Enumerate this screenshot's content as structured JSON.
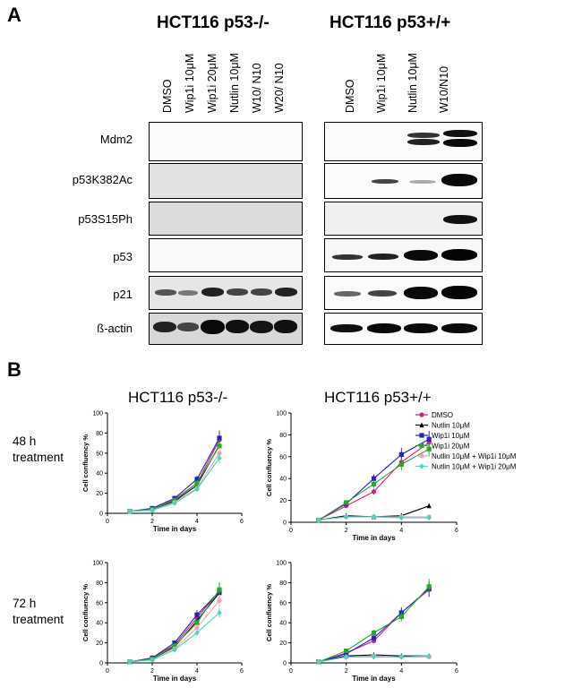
{
  "panel_a": {
    "letter": "A",
    "title_left": "HCT116 p53-/-",
    "title_right": "HCT116 p53+/+",
    "lanes_left": [
      "DMSO",
      "Wip1i 10μM",
      "Wip1i 20μM",
      "Nutlin 10μM",
      "W10/ N10",
      "W20/ N10"
    ],
    "lanes_right": [
      "DMSO",
      "Wip1i 10μM",
      "Nutlin 10μM",
      "W10/N10"
    ],
    "rows": [
      "Mdm2",
      "p53K382Ac",
      "p53S15Ph",
      "p53",
      "p21",
      "ß-actin"
    ]
  },
  "panel_b": {
    "letter": "B",
    "col_title_left": "HCT116 p53-/-",
    "col_title_right": "HCT116 p53+/+",
    "row_label_top_1": "48 h",
    "row_label_top_2": "treatment",
    "row_label_bottom_1": "72 h",
    "row_label_bottom_2": "treatment",
    "ylabel": "Cell confluency %",
    "xlabel": "Time in days",
    "legend": [
      "DMSO",
      "Nutlin 10μM",
      "Wip1i 10μM",
      "Wip1i 20μM",
      "Nutlin 10μM + Wip1i 10μM",
      "Nutlin 10μM + Wip1i 20μM"
    ],
    "series_colors": [
      "#e0197d",
      "#000000",
      "#2222cc",
      "#22aa22",
      "#f0a0b8",
      "#40d8c0"
    ]
  },
  "chart_data": [
    {
      "type": "line",
      "ylabel": "Cell confluency %",
      "xlabel": "Time in days",
      "xlim": [
        0,
        6
      ],
      "ylim": [
        0,
        100
      ],
      "xticks": [
        0,
        2,
        4,
        6
      ],
      "yticks": [
        0,
        20,
        40,
        60,
        80,
        100
      ],
      "x": [
        1,
        2,
        3,
        4,
        5
      ],
      "series": [
        {
          "name": "DMSO",
          "values": [
            2,
            4,
            14,
            30,
            73
          ]
        },
        {
          "name": "Nutlin 10μM",
          "values": [
            2,
            4,
            12,
            28,
            68
          ]
        },
        {
          "name": "Wip1i 10μM",
          "values": [
            2,
            5,
            15,
            34,
            75
          ]
        },
        {
          "name": "Wip1i 20μM",
          "values": [
            2,
            4,
            13,
            30,
            67
          ]
        },
        {
          "name": "Nutlin 10μM + Wip1i 10μM",
          "values": [
            2,
            3,
            11,
            25,
            60
          ]
        },
        {
          "name": "Nutlin 10μM + Wip1i 20μM",
          "values": [
            2,
            3,
            10,
            24,
            55
          ]
        }
      ]
    },
    {
      "type": "line",
      "ylabel": "Cell confluency %",
      "xlabel": "Time in days",
      "xlim": [
        0,
        6
      ],
      "ylim": [
        0,
        100
      ],
      "xticks": [
        0,
        2,
        4,
        6
      ],
      "yticks": [
        0,
        20,
        40,
        60,
        80,
        100
      ],
      "x": [
        1,
        2,
        3,
        4,
        5
      ],
      "series": [
        {
          "name": "DMSO",
          "values": [
            2,
            15,
            28,
            55,
            73
          ]
        },
        {
          "name": "Nutlin 10μM",
          "values": [
            2,
            6,
            5,
            6,
            15
          ]
        },
        {
          "name": "Wip1i 10μM",
          "values": [
            2,
            17,
            40,
            62,
            76
          ]
        },
        {
          "name": "Wip1i 20μM",
          "values": [
            2,
            18,
            35,
            53,
            67
          ]
        },
        {
          "name": "Nutlin 10μM + Wip1i 10μM",
          "values": [
            2,
            5,
            5,
            5,
            5
          ]
        },
        {
          "name": "Nutlin 10μM + Wip1i 20μM",
          "values": [
            2,
            5,
            5,
            4,
            4
          ]
        }
      ]
    },
    {
      "type": "line",
      "ylabel": "Cell confluency %",
      "xlabel": "Time in days",
      "xlim": [
        0,
        6
      ],
      "ylim": [
        0,
        100
      ],
      "xticks": [
        0,
        2,
        4,
        6
      ],
      "yticks": [
        0,
        20,
        40,
        60,
        80,
        100
      ],
      "x": [
        1,
        2,
        3,
        4,
        5
      ],
      "series": [
        {
          "name": "DMSO",
          "values": [
            1,
            5,
            18,
            45,
            72
          ]
        },
        {
          "name": "Nutlin 10μM",
          "values": [
            1,
            4,
            16,
            42,
            70
          ]
        },
        {
          "name": "Wip1i 10μM",
          "values": [
            1,
            5,
            20,
            48,
            71
          ]
        },
        {
          "name": "Wip1i 20μM",
          "values": [
            1,
            4,
            17,
            40,
            73
          ]
        },
        {
          "name": "Nutlin 10μM + Wip1i 10μM",
          "values": [
            1,
            3,
            14,
            35,
            62
          ]
        },
        {
          "name": "Nutlin 10μM + Wip1i 20μM",
          "values": [
            1,
            3,
            13,
            30,
            50
          ]
        }
      ]
    },
    {
      "type": "line",
      "ylabel": "Cell confluency %",
      "xlabel": "Time in days",
      "xlim": [
        0,
        6
      ],
      "ylim": [
        0,
        100
      ],
      "xticks": [
        0,
        2,
        4,
        6
      ],
      "yticks": [
        0,
        20,
        40,
        60,
        80,
        100
      ],
      "x": [
        1,
        2,
        3,
        4,
        5
      ],
      "series": [
        {
          "name": "DMSO",
          "values": [
            1,
            10,
            22,
            50,
            73
          ]
        },
        {
          "name": "Nutlin 10μM",
          "values": [
            1,
            7,
            8,
            7,
            7
          ]
        },
        {
          "name": "Wip1i 10μM",
          "values": [
            1,
            9,
            25,
            50,
            74
          ]
        },
        {
          "name": "Wip1i 20μM",
          "values": [
            1,
            12,
            30,
            46,
            76
          ]
        },
        {
          "name": "Nutlin 10μM + Wip1i 10μM",
          "values": [
            1,
            6,
            7,
            6,
            6
          ]
        },
        {
          "name": "Nutlin 10μM + Wip1i 20μM",
          "values": [
            1,
            6,
            6,
            6,
            7
          ]
        }
      ]
    }
  ]
}
